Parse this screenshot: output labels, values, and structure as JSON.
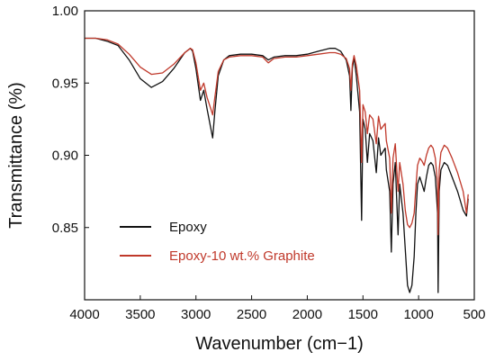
{
  "chart_data": {
    "type": "line",
    "title": "",
    "xlabel": "Wavenumber (cm−1)",
    "ylabel": "Transmittance (%)",
    "xlim": [
      4000,
      500
    ],
    "ylim": [
      0.8,
      1.0
    ],
    "x_reversed": true,
    "x_ticks": [
      4000,
      3500,
      3000,
      2500,
      2000,
      1500,
      1000,
      500
    ],
    "y_ticks": [
      0.85,
      0.9,
      0.95,
      1.0
    ],
    "x_tick_labels": [
      "4000",
      "3500",
      "3000",
      "2500",
      "2000",
      "1500",
      "1000",
      "500"
    ],
    "y_tick_labels": [
      "0.85",
      "0.90",
      "0.95",
      "1.00"
    ],
    "grid": false,
    "legend_position": "lower-left",
    "series": [
      {
        "name": "Epoxy",
        "color": "#111111",
        "points": [
          [
            4000,
            0.981
          ],
          [
            3900,
            0.981
          ],
          [
            3800,
            0.979
          ],
          [
            3700,
            0.976
          ],
          [
            3600,
            0.966
          ],
          [
            3500,
            0.953
          ],
          [
            3400,
            0.947
          ],
          [
            3300,
            0.951
          ],
          [
            3200,
            0.96
          ],
          [
            3100,
            0.971
          ],
          [
            3050,
            0.974
          ],
          [
            3030,
            0.972
          ],
          [
            3000,
            0.96
          ],
          [
            2960,
            0.938
          ],
          [
            2930,
            0.945
          ],
          [
            2900,
            0.932
          ],
          [
            2870,
            0.92
          ],
          [
            2850,
            0.912
          ],
          [
            2830,
            0.93
          ],
          [
            2800,
            0.955
          ],
          [
            2750,
            0.966
          ],
          [
            2700,
            0.969
          ],
          [
            2600,
            0.97
          ],
          [
            2500,
            0.97
          ],
          [
            2400,
            0.969
          ],
          [
            2350,
            0.966
          ],
          [
            2300,
            0.968
          ],
          [
            2200,
            0.969
          ],
          [
            2100,
            0.969
          ],
          [
            2000,
            0.97
          ],
          [
            1900,
            0.972
          ],
          [
            1800,
            0.974
          ],
          [
            1750,
            0.974
          ],
          [
            1700,
            0.972
          ],
          [
            1650,
            0.966
          ],
          [
            1620,
            0.955
          ],
          [
            1608,
            0.931
          ],
          [
            1595,
            0.96
          ],
          [
            1580,
            0.968
          ],
          [
            1560,
            0.955
          ],
          [
            1530,
            0.93
          ],
          [
            1512,
            0.855
          ],
          [
            1500,
            0.925
          ],
          [
            1480,
            0.918
          ],
          [
            1460,
            0.895
          ],
          [
            1440,
            0.915
          ],
          [
            1410,
            0.91
          ],
          [
            1380,
            0.888
          ],
          [
            1360,
            0.912
          ],
          [
            1340,
            0.9
          ],
          [
            1300,
            0.905
          ],
          [
            1290,
            0.89
          ],
          [
            1260,
            0.875
          ],
          [
            1245,
            0.833
          ],
          [
            1230,
            0.88
          ],
          [
            1210,
            0.895
          ],
          [
            1185,
            0.845
          ],
          [
            1170,
            0.88
          ],
          [
            1140,
            0.86
          ],
          [
            1120,
            0.835
          ],
          [
            1100,
            0.81
          ],
          [
            1080,
            0.805
          ],
          [
            1060,
            0.81
          ],
          [
            1040,
            0.83
          ],
          [
            1025,
            0.86
          ],
          [
            1010,
            0.88
          ],
          [
            990,
            0.885
          ],
          [
            970,
            0.88
          ],
          [
            950,
            0.875
          ],
          [
            930,
            0.885
          ],
          [
            910,
            0.893
          ],
          [
            890,
            0.895
          ],
          [
            870,
            0.893
          ],
          [
            850,
            0.885
          ],
          [
            830,
            0.86
          ],
          [
            825,
            0.805
          ],
          [
            815,
            0.875
          ],
          [
            800,
            0.89
          ],
          [
            770,
            0.895
          ],
          [
            740,
            0.893
          ],
          [
            700,
            0.885
          ],
          [
            650,
            0.875
          ],
          [
            600,
            0.862
          ],
          [
            570,
            0.858
          ],
          [
            555,
            0.87
          ]
        ]
      },
      {
        "name": "Epoxy-10 wt.% Graphite",
        "color": "#c0392b",
        "points": [
          [
            4000,
            0.981
          ],
          [
            3900,
            0.981
          ],
          [
            3800,
            0.98
          ],
          [
            3700,
            0.977
          ],
          [
            3600,
            0.97
          ],
          [
            3500,
            0.961
          ],
          [
            3400,
            0.956
          ],
          [
            3300,
            0.957
          ],
          [
            3200,
            0.963
          ],
          [
            3100,
            0.971
          ],
          [
            3050,
            0.974
          ],
          [
            3030,
            0.973
          ],
          [
            3000,
            0.964
          ],
          [
            2960,
            0.945
          ],
          [
            2930,
            0.95
          ],
          [
            2900,
            0.94
          ],
          [
            2870,
            0.933
          ],
          [
            2850,
            0.928
          ],
          [
            2830,
            0.94
          ],
          [
            2800,
            0.958
          ],
          [
            2750,
            0.966
          ],
          [
            2700,
            0.968
          ],
          [
            2600,
            0.969
          ],
          [
            2500,
            0.969
          ],
          [
            2400,
            0.968
          ],
          [
            2350,
            0.964
          ],
          [
            2300,
            0.967
          ],
          [
            2200,
            0.968
          ],
          [
            2100,
            0.968
          ],
          [
            2000,
            0.969
          ],
          [
            1900,
            0.97
          ],
          [
            1800,
            0.971
          ],
          [
            1750,
            0.971
          ],
          [
            1700,
            0.97
          ],
          [
            1650,
            0.967
          ],
          [
            1620,
            0.96
          ],
          [
            1608,
            0.945
          ],
          [
            1595,
            0.963
          ],
          [
            1580,
            0.969
          ],
          [
            1560,
            0.962
          ],
          [
            1530,
            0.945
          ],
          [
            1512,
            0.895
          ],
          [
            1500,
            0.935
          ],
          [
            1480,
            0.93
          ],
          [
            1460,
            0.915
          ],
          [
            1440,
            0.928
          ],
          [
            1410,
            0.925
          ],
          [
            1380,
            0.908
          ],
          [
            1360,
            0.927
          ],
          [
            1340,
            0.918
          ],
          [
            1300,
            0.922
          ],
          [
            1290,
            0.91
          ],
          [
            1260,
            0.898
          ],
          [
            1245,
            0.86
          ],
          [
            1230,
            0.898
          ],
          [
            1210,
            0.908
          ],
          [
            1185,
            0.875
          ],
          [
            1170,
            0.895
          ],
          [
            1140,
            0.88
          ],
          [
            1120,
            0.862
          ],
          [
            1100,
            0.852
          ],
          [
            1080,
            0.85
          ],
          [
            1060,
            0.853
          ],
          [
            1040,
            0.86
          ],
          [
            1025,
            0.878
          ],
          [
            1010,
            0.893
          ],
          [
            990,
            0.898
          ],
          [
            970,
            0.896
          ],
          [
            950,
            0.893
          ],
          [
            930,
            0.9
          ],
          [
            910,
            0.905
          ],
          [
            890,
            0.907
          ],
          [
            870,
            0.905
          ],
          [
            850,
            0.898
          ],
          [
            830,
            0.88
          ],
          [
            825,
            0.845
          ],
          [
            815,
            0.89
          ],
          [
            800,
            0.902
          ],
          [
            770,
            0.907
          ],
          [
            740,
            0.905
          ],
          [
            700,
            0.898
          ],
          [
            650,
            0.888
          ],
          [
            600,
            0.875
          ],
          [
            570,
            0.86
          ],
          [
            555,
            0.873
          ]
        ]
      }
    ]
  }
}
